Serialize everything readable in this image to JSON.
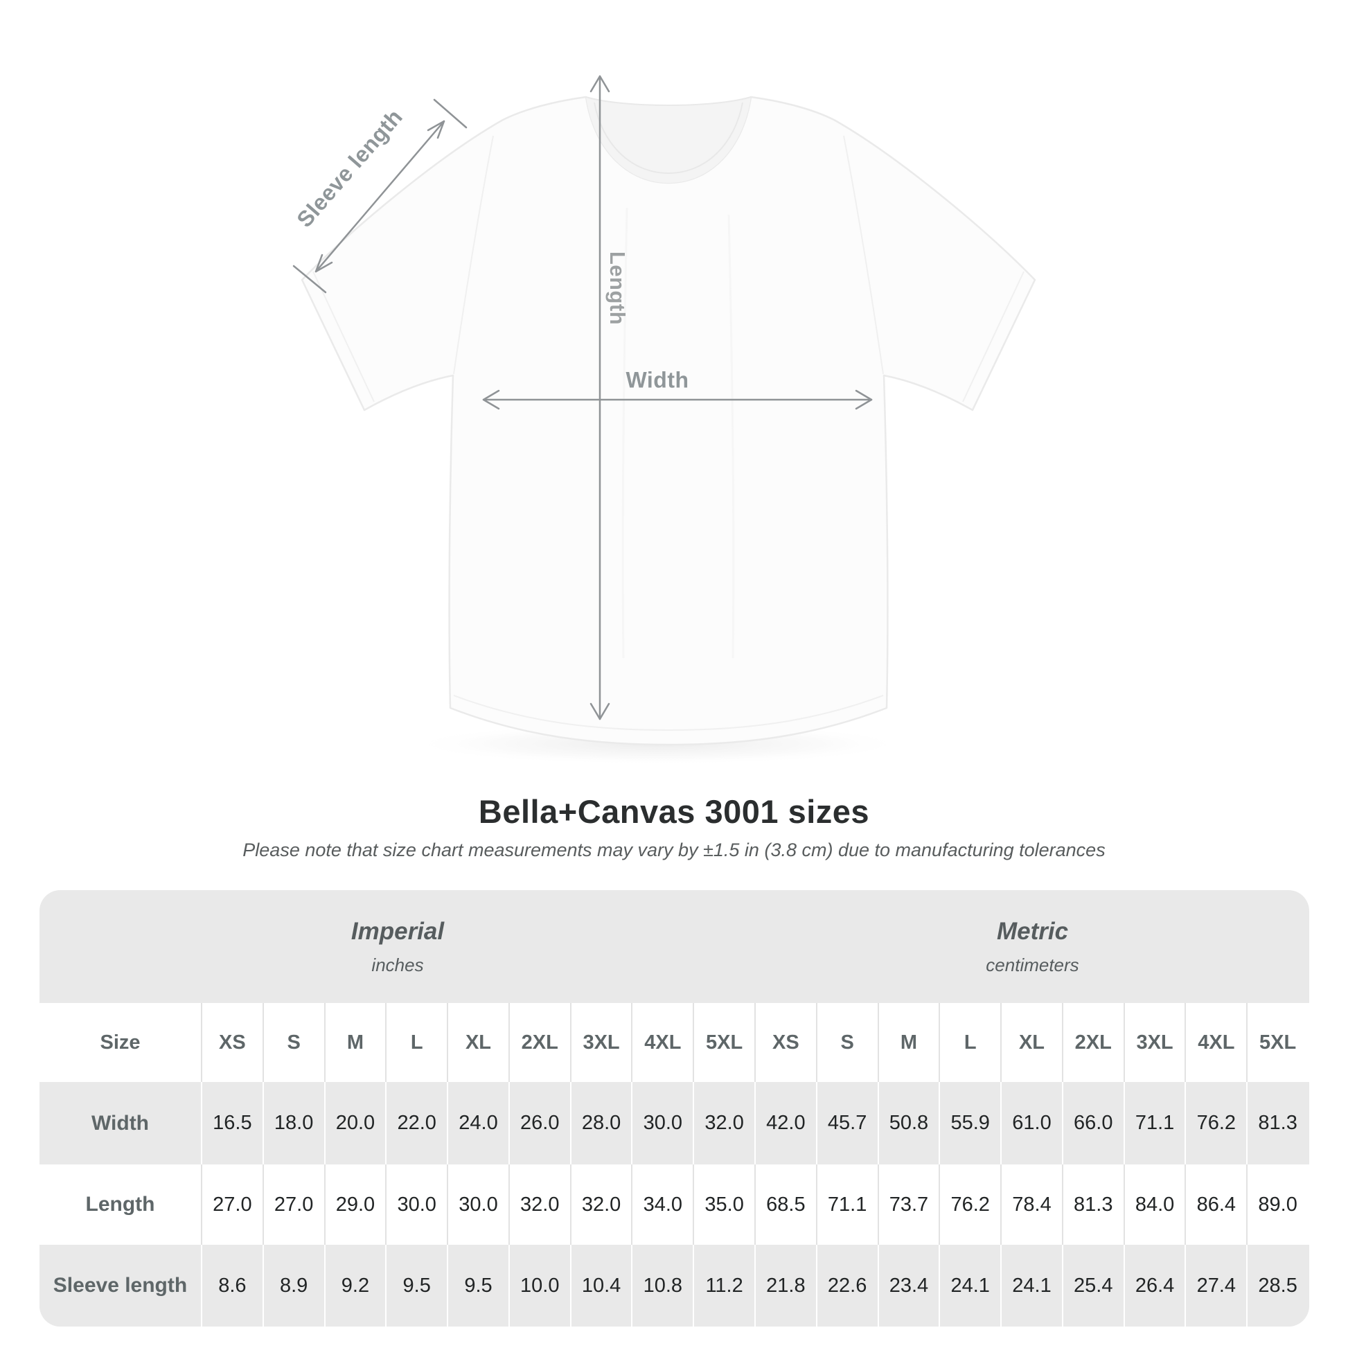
{
  "header": {
    "title": "Bella+Canvas 3001 sizes",
    "subtitle": "Please note that size chart measurements may vary by ±1.5 in (3.8 cm) due to manufacturing tolerances"
  },
  "diagram": {
    "sleeve_label": "Sleeve length",
    "length_label": "Length",
    "width_label": "Width"
  },
  "table": {
    "corner_label": "Size",
    "groups": [
      {
        "label": "Imperial",
        "unit": "inches"
      },
      {
        "label": "Metric",
        "unit": "centimeters"
      }
    ],
    "sizes": [
      "XS",
      "S",
      "M",
      "L",
      "XL",
      "2XL",
      "3XL",
      "4XL",
      "5XL"
    ],
    "rows": [
      {
        "label": "Width",
        "imperial": [
          "16.5",
          "18.0",
          "20.0",
          "22.0",
          "24.0",
          "26.0",
          "28.0",
          "30.0",
          "32.0"
        ],
        "metric": [
          "42.0",
          "45.7",
          "50.8",
          "55.9",
          "61.0",
          "66.0",
          "71.1",
          "76.2",
          "81.3"
        ]
      },
      {
        "label": "Length",
        "imperial": [
          "27.0",
          "27.0",
          "29.0",
          "30.0",
          "30.0",
          "32.0",
          "32.0",
          "34.0",
          "35.0"
        ],
        "metric": [
          "68.5",
          "71.1",
          "73.7",
          "76.2",
          "78.4",
          "81.3",
          "84.0",
          "86.4",
          "89.0"
        ]
      },
      {
        "label": "Sleeve length",
        "imperial": [
          "8.6",
          "8.9",
          "9.2",
          "9.5",
          "9.5",
          "10.0",
          "10.4",
          "10.8",
          "11.2"
        ],
        "metric": [
          "21.8",
          "22.6",
          "23.4",
          "24.1",
          "24.1",
          "25.4",
          "26.4",
          "27.4",
          "28.5"
        ]
      }
    ]
  },
  "chart_data": {
    "type": "table",
    "title": "Bella+Canvas 3001 sizes",
    "note": "Please note that size chart measurements may vary by ±1.5 in (3.8 cm) due to manufacturing tolerances",
    "units": {
      "imperial": "inches",
      "metric": "centimeters"
    },
    "sizes": [
      "XS",
      "S",
      "M",
      "L",
      "XL",
      "2XL",
      "3XL",
      "4XL",
      "5XL"
    ],
    "measurements": {
      "imperial": {
        "width": [
          16.5,
          18.0,
          20.0,
          22.0,
          24.0,
          26.0,
          28.0,
          30.0,
          32.0
        ],
        "length": [
          27.0,
          27.0,
          29.0,
          30.0,
          30.0,
          32.0,
          32.0,
          34.0,
          35.0
        ],
        "sleeve_length": [
          8.6,
          8.9,
          9.2,
          9.5,
          9.5,
          10.0,
          10.4,
          10.8,
          11.2
        ]
      },
      "metric": {
        "width": [
          42.0,
          45.7,
          50.8,
          55.9,
          61.0,
          66.0,
          71.1,
          76.2,
          81.3
        ],
        "length": [
          68.5,
          71.1,
          73.7,
          76.2,
          78.4,
          81.3,
          84.0,
          86.4,
          89.0
        ],
        "sleeve_length": [
          21.8,
          22.6,
          23.4,
          24.1,
          24.1,
          25.4,
          26.4,
          27.4,
          28.5
        ]
      }
    }
  },
  "colors": {
    "table_background": "#e9e9e9",
    "row_alt": "#ffffff",
    "heading_text": "#5e6668",
    "value_text": "#212425",
    "title_text": "#2b2e2f",
    "annotation_gray": "#8f9699"
  }
}
